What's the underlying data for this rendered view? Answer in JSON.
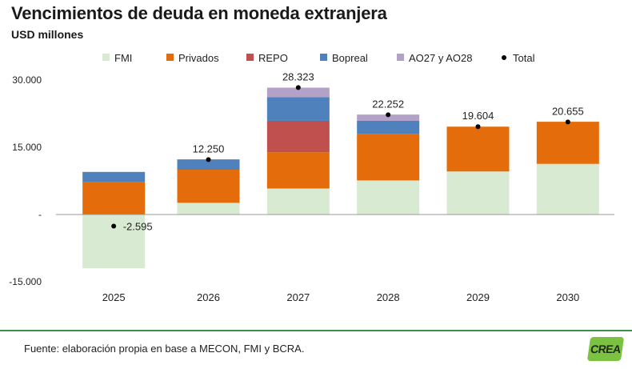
{
  "header": {
    "title": "Vencimientos de deuda en moneda extranjera",
    "subtitle": "USD millones"
  },
  "footer": {
    "source": "Fuente: elaboración propia en base a MECON, FMI y BCRA.",
    "logo_text": "CREA",
    "rule_color": "#3d8f4a",
    "logo_color": "#7cc242"
  },
  "chart_data": {
    "type": "bar",
    "stacked": true,
    "categories": [
      "2025",
      "2026",
      "2027",
      "2028",
      "2029",
      "2030"
    ],
    "ylim": [
      -15000,
      30000
    ],
    "yticks": [
      -15000,
      0,
      15000,
      30000
    ],
    "ytick_labels": [
      "-15.000",
      "-",
      "15.000",
      "30.000"
    ],
    "grid": false,
    "legend_position": "top",
    "series": [
      {
        "name": "FMI",
        "color": "#d9ead3",
        "values": [
          -12000,
          2600,
          5800,
          7600,
          9600,
          11300
        ]
      },
      {
        "name": "Privados",
        "color": "#e46c0a",
        "values": [
          7200,
          7400,
          8100,
          10300,
          10000,
          9400
        ]
      },
      {
        "name": "REPO",
        "color": "#c0504d",
        "values": [
          0,
          0,
          7000,
          0,
          0,
          0
        ]
      },
      {
        "name": "Bopreal",
        "color": "#4f81bd",
        "values": [
          2300,
          2300,
          5300,
          3000,
          0,
          0
        ]
      },
      {
        "name": "AO27 y AO28",
        "color": "#b3a2c7",
        "values": [
          0,
          0,
          2100,
          1400,
          0,
          0
        ]
      }
    ],
    "total": {
      "name": "Total",
      "values": [
        -2595,
        12250,
        28323,
        22252,
        19604,
        20655
      ],
      "labels": [
        "-2.595",
        "12.250",
        "28.323",
        "22.252",
        "19.604",
        "20.655"
      ]
    }
  }
}
